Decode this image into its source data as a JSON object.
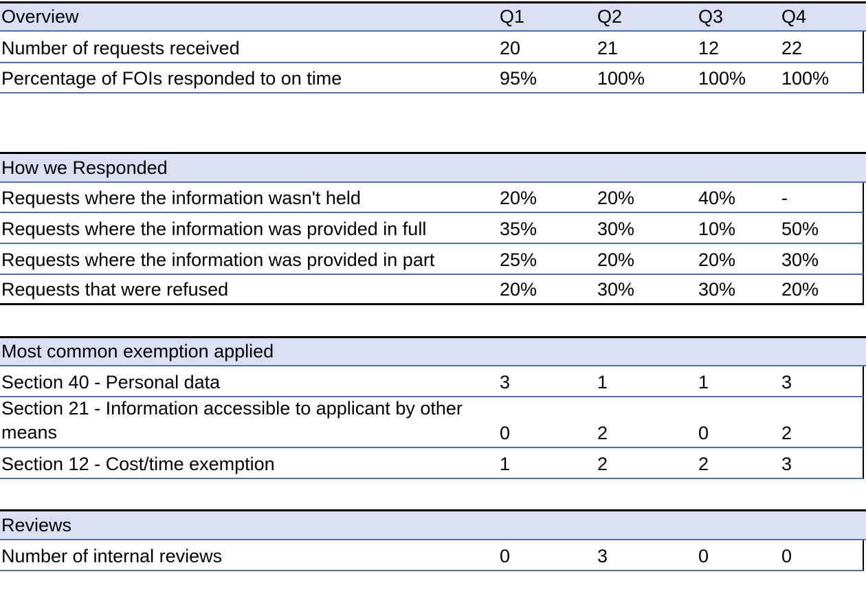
{
  "sections": [
    {
      "title": "Overview",
      "headers": [
        "Q1",
        "Q2",
        "Q3",
        "Q4"
      ],
      "rows": [
        {
          "label": "Number of requests received",
          "values": [
            "20",
            "21",
            "12",
            "22"
          ]
        },
        {
          "label": "Percentage of FOIs responded to on time",
          "values": [
            "95%",
            "100%",
            "100%",
            "100%"
          ]
        }
      ]
    },
    {
      "title": "How we Responded",
      "rows": [
        {
          "label": "Requests where the information wasn't held",
          "values": [
            "20%",
            "20%",
            "40%",
            "-"
          ]
        },
        {
          "label": "Requests where the information was provided in full",
          "values": [
            "35%",
            "30%",
            "10%",
            "50%"
          ]
        },
        {
          "label": "Requests where the information was provided in part",
          "values": [
            "25%",
            "20%",
            "20%",
            "30%"
          ]
        },
        {
          "label": "Requests that were refused",
          "values": [
            "20%",
            "30%",
            "30%",
            "20%"
          ]
        }
      ]
    },
    {
      "title": "Most common exemption applied",
      "rows": [
        {
          "label": "Section 40 - Personal data",
          "values": [
            "3",
            "1",
            "1",
            "3"
          ]
        },
        {
          "label": "Section 21 - Information accessible to applicant by other means",
          "values": [
            "0",
            "2",
            "0",
            "2"
          ]
        },
        {
          "label": "Section 12 - Cost/time exemption",
          "values": [
            "1",
            "2",
            "2",
            "3"
          ]
        }
      ]
    },
    {
      "title": "Reviews",
      "rows": [
        {
          "label": "Number of internal reviews",
          "values": [
            "0",
            "3",
            "0",
            "0"
          ]
        }
      ]
    }
  ]
}
